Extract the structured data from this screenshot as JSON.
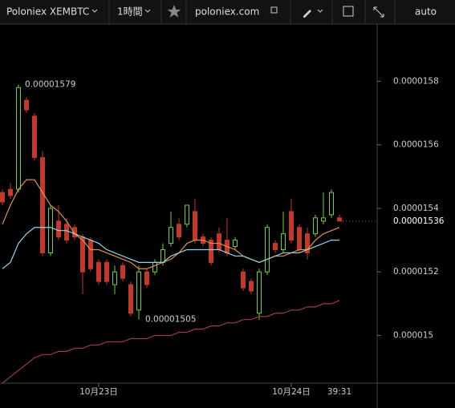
{
  "toolbar": {
    "symbol": "Poloniex XEMBTC",
    "interval": "1時間",
    "site": "poloniex.com",
    "scale": "auto"
  },
  "chart_data": {
    "type": "candlestick",
    "categories": [
      null,
      null,
      null,
      null,
      null,
      null,
      null,
      null,
      null,
      null,
      null,
      null,
      "10月23日",
      null,
      null,
      null,
      null,
      null,
      null,
      null,
      null,
      null,
      null,
      null,
      null,
      null,
      null,
      null,
      null,
      null,
      null,
      null,
      null,
      null,
      null,
      null,
      "10月24日",
      null,
      null,
      null,
      null,
      null,
      null
    ],
    "open": [
      1.545e-05,
      1.546e-05,
      1.546e-05,
      1.574e-05,
      1.569e-05,
      1.556e-05,
      1.526e-05,
      1.536e-05,
      1.535e-05,
      1.534e-05,
      1.531e-05,
      1.53e-05,
      1.523e-05,
      1.523e-05,
      1.516e-05,
      1.522e-05,
      1.516e-05,
      1.508e-05,
      1.52e-05,
      1.52e-05,
      1.523e-05,
      1.529e-05,
      1.535e-05,
      1.535e-05,
      1.539e-05,
      1.531e-05,
      1.53e-05,
      1.532e-05,
      1.53e-05,
      1.528e-05,
      1.52e-05,
      1.517e-05,
      1.507e-05,
      1.52e-05,
      1.529e-05,
      1.527e-05,
      1.539e-05,
      1.534e-05,
      1.532e-05,
      1.532e-05,
      1.536e-05,
      1.538e-05,
      1.537e-05
    ],
    "high": [
      1.546e-05,
      1.548e-05,
      1.579e-05,
      1.575e-05,
      1.57e-05,
      1.558e-05,
      1.541e-05,
      1.541e-05,
      1.537e-05,
      1.535e-05,
      1.532e-05,
      1.531e-05,
      1.524e-05,
      1.524e-05,
      1.522e-05,
      1.523e-05,
      1.517e-05,
      1.522e-05,
      1.521e-05,
      1.524e-05,
      1.529e-05,
      1.539e-05,
      1.537e-05,
      1.541e-05,
      1.543e-05,
      1.532e-05,
      1.531e-05,
      1.534e-05,
      1.537e-05,
      1.531e-05,
      1.521e-05,
      1.518e-05,
      1.521e-05,
      1.535e-05,
      1.53e-05,
      1.539e-05,
      1.543e-05,
      1.535e-05,
      1.534e-05,
      1.538e-05,
      1.545e-05,
      1.546e-05,
      1.538e-05
    ],
    "low": [
      1.541e-05,
      1.543e-05,
      1.545e-05,
      1.57e-05,
      1.555e-05,
      1.525e-05,
      1.525e-05,
      1.53e-05,
      1.529e-05,
      1.53e-05,
      1.513e-05,
      1.52e-05,
      1.516e-05,
      1.516e-05,
      1.513e-05,
      1.517e-05,
      1.506e-05,
      1.505e-05,
      1.515e-05,
      1.519e-05,
      1.522e-05,
      1.528e-05,
      1.53e-05,
      1.534e-05,
      1.529e-05,
      1.528e-05,
      1.522e-05,
      1.526e-05,
      1.525e-05,
      1.527e-05,
      1.514e-05,
      1.513e-05,
      1.505e-05,
      1.519e-05,
      1.526e-05,
      1.526e-05,
      1.529e-05,
      1.526e-05,
      1.524e-05,
      1.531e-05,
      1.535e-05,
      1.537e-05,
      1.536e-05
    ],
    "close": [
      1.542e-05,
      1.544e-05,
      1.578e-05,
      1.571e-05,
      1.556e-05,
      1.526e-05,
      1.54e-05,
      1.531e-05,
      1.53e-05,
      1.531e-05,
      1.52e-05,
      1.521e-05,
      1.517e-05,
      1.517e-05,
      1.52e-05,
      1.518e-05,
      1.507e-05,
      1.52e-05,
      1.516e-05,
      1.523e-05,
      1.527e-05,
      1.534e-05,
      1.531e-05,
      1.541e-05,
      1.53e-05,
      1.529e-05,
      1.523e-05,
      1.527e-05,
      1.526e-05,
      1.53e-05,
      1.515e-05,
      1.514e-05,
      1.52e-05,
      1.534e-05,
      1.527e-05,
      1.532e-05,
      1.53e-05,
      1.527e-05,
      1.526e-05,
      1.537e-05,
      1.537e-05,
      1.545e-05,
      1.536e-05
    ],
    "up_color": "#6fd13c",
    "down_color": "#c0392b",
    "lines": [
      {
        "color": "#e0914a",
        "values": [
          1.535e-05,
          1.541e-05,
          1.546e-05,
          1.549e-05,
          1.549e-05,
          1.545e-05,
          1.541e-05,
          1.539e-05,
          1.536e-05,
          1.532e-05,
          1.53e-05,
          1.527e-05,
          1.527e-05,
          1.526e-05,
          1.525e-05,
          1.524e-05,
          1.523e-05,
          1.521e-05,
          1.521e-05,
          1.522e-05,
          1.523e-05,
          1.524e-05,
          1.526e-05,
          1.529e-05,
          1.53e-05,
          1.53e-05,
          1.529e-05,
          1.529e-05,
          1.528e-05,
          1.527e-05,
          1.525e-05,
          1.524e-05,
          1.523e-05,
          1.524e-05,
          1.525e-05,
          1.525e-05,
          1.526e-05,
          1.527e-05,
          1.527e-05,
          1.53e-05,
          1.532e-05,
          1.533e-05,
          1.534e-05
        ]
      },
      {
        "color": "#8fd3e8",
        "values": [
          1.521e-05,
          1.523e-05,
          1.529e-05,
          1.532e-05,
          1.534e-05,
          1.534e-05,
          1.534e-05,
          1.533e-05,
          1.533e-05,
          1.532e-05,
          1.531e-05,
          1.53e-05,
          1.529e-05,
          1.527e-05,
          1.526e-05,
          1.525e-05,
          1.524e-05,
          1.523e-05,
          1.523e-05,
          1.523e-05,
          1.523e-05,
          1.525e-05,
          1.526e-05,
          1.527e-05,
          1.527e-05,
          1.527e-05,
          1.527e-05,
          1.527e-05,
          1.526e-05,
          1.525e-05,
          1.525e-05,
          1.524e-05,
          1.523e-05,
          1.524e-05,
          1.525e-05,
          1.526e-05,
          1.526e-05,
          1.526e-05,
          1.527e-05,
          1.528e-05,
          1.529e-05,
          1.53e-05,
          1.53e-05
        ]
      },
      {
        "color": "#9c3a4a",
        "values": [
          1.485e-05,
          1.487e-05,
          1.489e-05,
          1.491e-05,
          1.493e-05,
          1.494e-05,
          1.494e-05,
          1.495e-05,
          1.495e-05,
          1.496e-05,
          1.496e-05,
          1.497e-05,
          1.497e-05,
          1.498e-05,
          1.498e-05,
          1.498e-05,
          1.499e-05,
          1.499e-05,
          1.499e-05,
          1.5e-05,
          1.5e-05,
          1.5e-05,
          1.501e-05,
          1.501e-05,
          1.502e-05,
          1.502e-05,
          1.503e-05,
          1.503e-05,
          1.504e-05,
          1.504e-05,
          1.505e-05,
          1.505e-05,
          1.506e-05,
          1.506e-05,
          1.507e-05,
          1.507e-05,
          1.508e-05,
          1.508e-05,
          1.509e-05,
          1.509e-05,
          1.51e-05,
          1.51e-05,
          1.511e-05
        ]
      }
    ],
    "ylim": [
      1.485e-05,
      1.598e-05
    ],
    "yticks": [
      1.5e-05,
      1.52e-05,
      1.54e-05,
      1.56e-05,
      1.58e-05
    ],
    "last_price": 1.536e-05,
    "max_label": 1.579e-05,
    "min_label": 1.505e-05,
    "countdown": "39:31"
  }
}
